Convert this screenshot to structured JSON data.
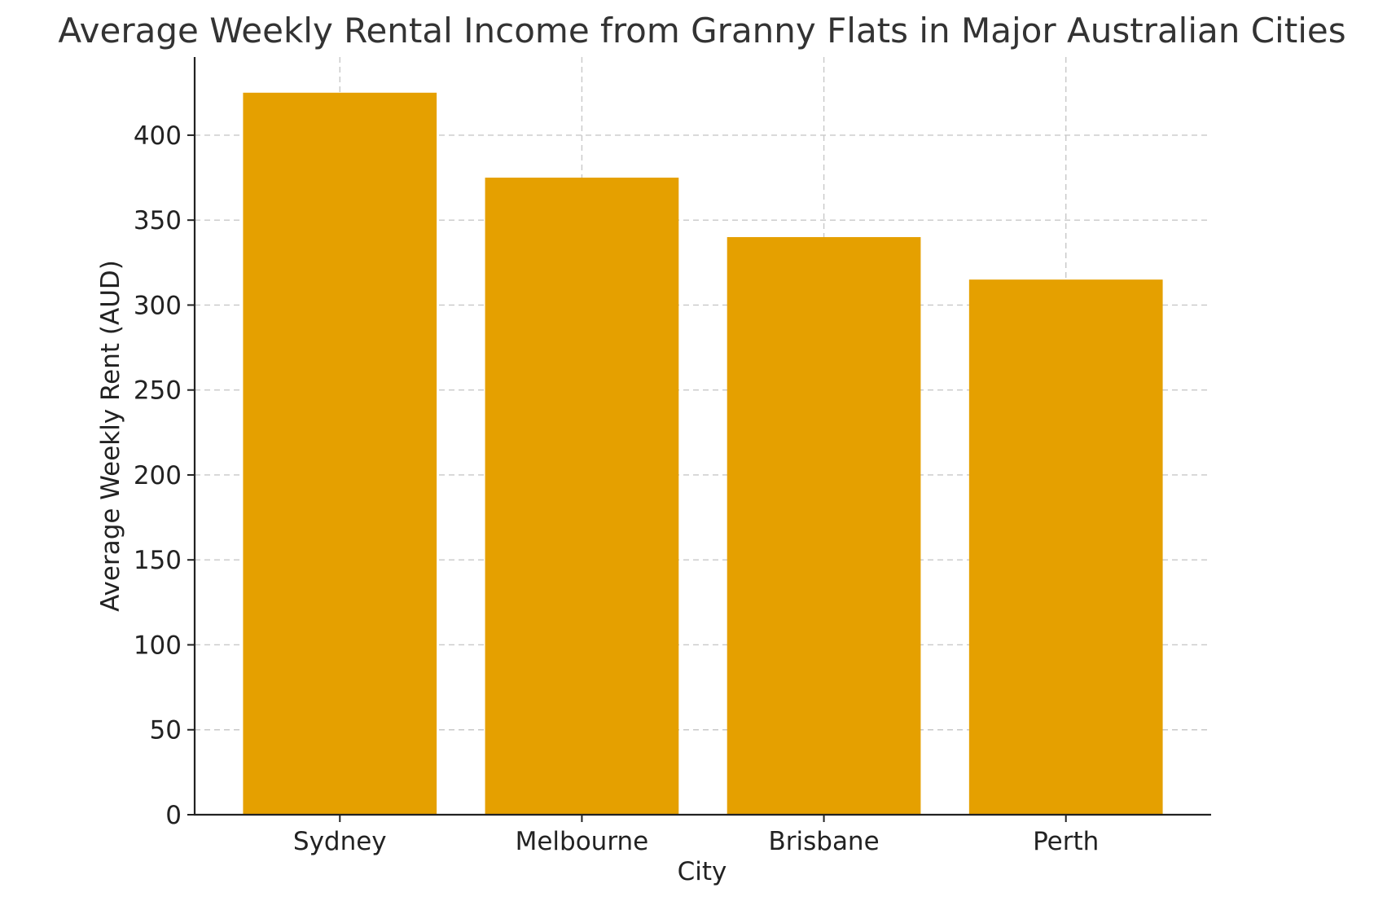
{
  "chart_data": {
    "type": "bar",
    "title": "Average Weekly Rental Income from Granny Flats in Major Australian Cities",
    "xlabel": "City",
    "ylabel": "Average Weekly Rent (AUD)",
    "categories": [
      "Sydney",
      "Melbourne",
      "Brisbane",
      "Perth"
    ],
    "values": [
      425,
      375,
      340,
      315
    ],
    "ylim": [
      0,
      446
    ],
    "yticks": [
      0,
      50,
      100,
      150,
      200,
      250,
      300,
      350,
      400
    ],
    "grid": true,
    "legend": "none",
    "bar_color": "#e5a000"
  }
}
